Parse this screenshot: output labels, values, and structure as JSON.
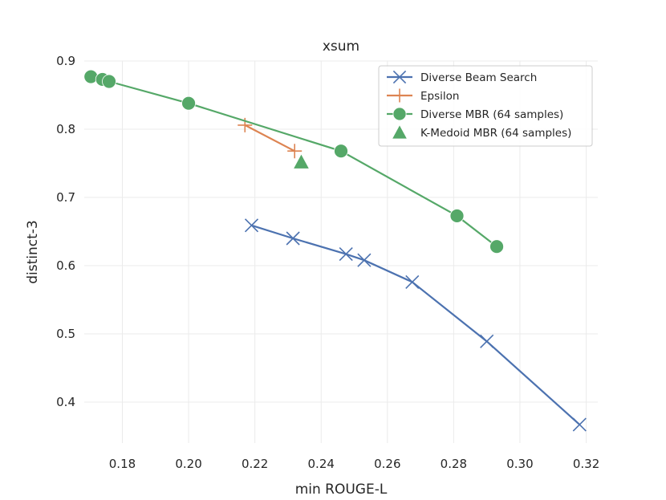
{
  "chart_data": {
    "type": "line",
    "title": "xsum",
    "xlabel": "min ROUGE-L",
    "ylabel": "distinct-3",
    "xlim": [
      0.1685,
      0.3235
    ],
    "ylim": [
      0.34,
      0.9
    ],
    "xticks": [
      0.18,
      0.2,
      0.22,
      0.24,
      0.26,
      0.28,
      0.3,
      0.32
    ],
    "xtick_labels": [
      "0.18",
      "0.20",
      "0.22",
      "0.24",
      "0.26",
      "0.28",
      "0.30",
      "0.32"
    ],
    "yticks": [
      0.4,
      0.5,
      0.6,
      0.7,
      0.8,
      0.9
    ],
    "ytick_labels": [
      "0.4",
      "0.5",
      "0.6",
      "0.7",
      "0.8",
      "0.9"
    ],
    "grid": true,
    "legend_position": "top-right",
    "series": [
      {
        "name": "Diverse Beam Search",
        "color": "#4c72b0",
        "marker": "x",
        "x": [
          0.219,
          0.2315,
          0.2475,
          0.253,
          0.2675,
          0.29,
          0.318
        ],
        "y": [
          0.659,
          0.64,
          0.617,
          0.608,
          0.576,
          0.489,
          0.367
        ]
      },
      {
        "name": "Epsilon",
        "color": "#dd8452",
        "marker": "plus",
        "x": [
          0.217,
          0.232
        ],
        "y": [
          0.806,
          0.768
        ]
      },
      {
        "name": "Diverse MBR (64 samples)",
        "color": "#55a868",
        "marker": "circle",
        "x": [
          0.1705,
          0.174,
          0.176,
          0.2,
          0.246,
          0.281,
          0.293
        ],
        "y": [
          0.877,
          0.873,
          0.87,
          0.838,
          0.768,
          0.673,
          0.628
        ]
      },
      {
        "name": "K-Medoid MBR (64 samples)",
        "color": "#55a868",
        "marker": "triangle",
        "x": [
          0.234
        ],
        "y": [
          0.752
        ]
      }
    ]
  }
}
